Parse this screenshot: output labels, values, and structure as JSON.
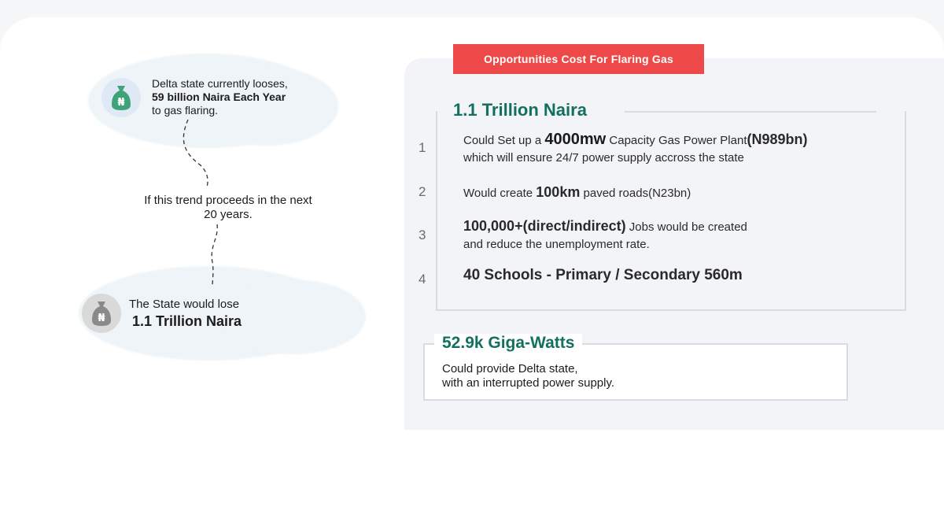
{
  "left": {
    "top_note": {
      "line1": "Delta state currently looses,",
      "line2": "59 billion Naira Each Year",
      "line3": "to gas flaring."
    },
    "middle_note": {
      "line1": "If this trend proceeds in the next",
      "line2": "20 years."
    },
    "bottom_note": {
      "line1": "The State would lose",
      "line2": "1.1 Trillion Naira"
    },
    "bag_symbol": "₦"
  },
  "panel": {
    "tag_label": "Opportunities Cost For Flaring Gas",
    "section1_title": "1.1 Trillion Naira",
    "items": [
      {
        "num": "1",
        "pre": "Could Set up a ",
        "emph": "4000mw",
        "mid": " Capacity Gas Power Plant",
        "emph2": "(N989bn)",
        "line2": "which will ensure 24/7 power supply accross the state"
      },
      {
        "num": "2",
        "pre": "Would create ",
        "emph": "100km",
        "post": " paved roads(N23bn)"
      },
      {
        "num": "3",
        "emph": "100,000+(direct/indirect)",
        "post": " Jobs would be created",
        "line2": "and reduce the unemployment rate."
      },
      {
        "num": "4",
        "emph": "40 Schools - Primary / Secondary 560m"
      }
    ],
    "section2_title": "52.9k Giga-Watts",
    "section2_line1": "Could  provide Delta state,",
    "section2_line2": "with an interrupted power supply."
  },
  "colors": {
    "accent_red": "#ee4949",
    "accent_green": "#13705f",
    "bag_green": "#3fa37a",
    "bag_gray": "#8a8a8a"
  }
}
